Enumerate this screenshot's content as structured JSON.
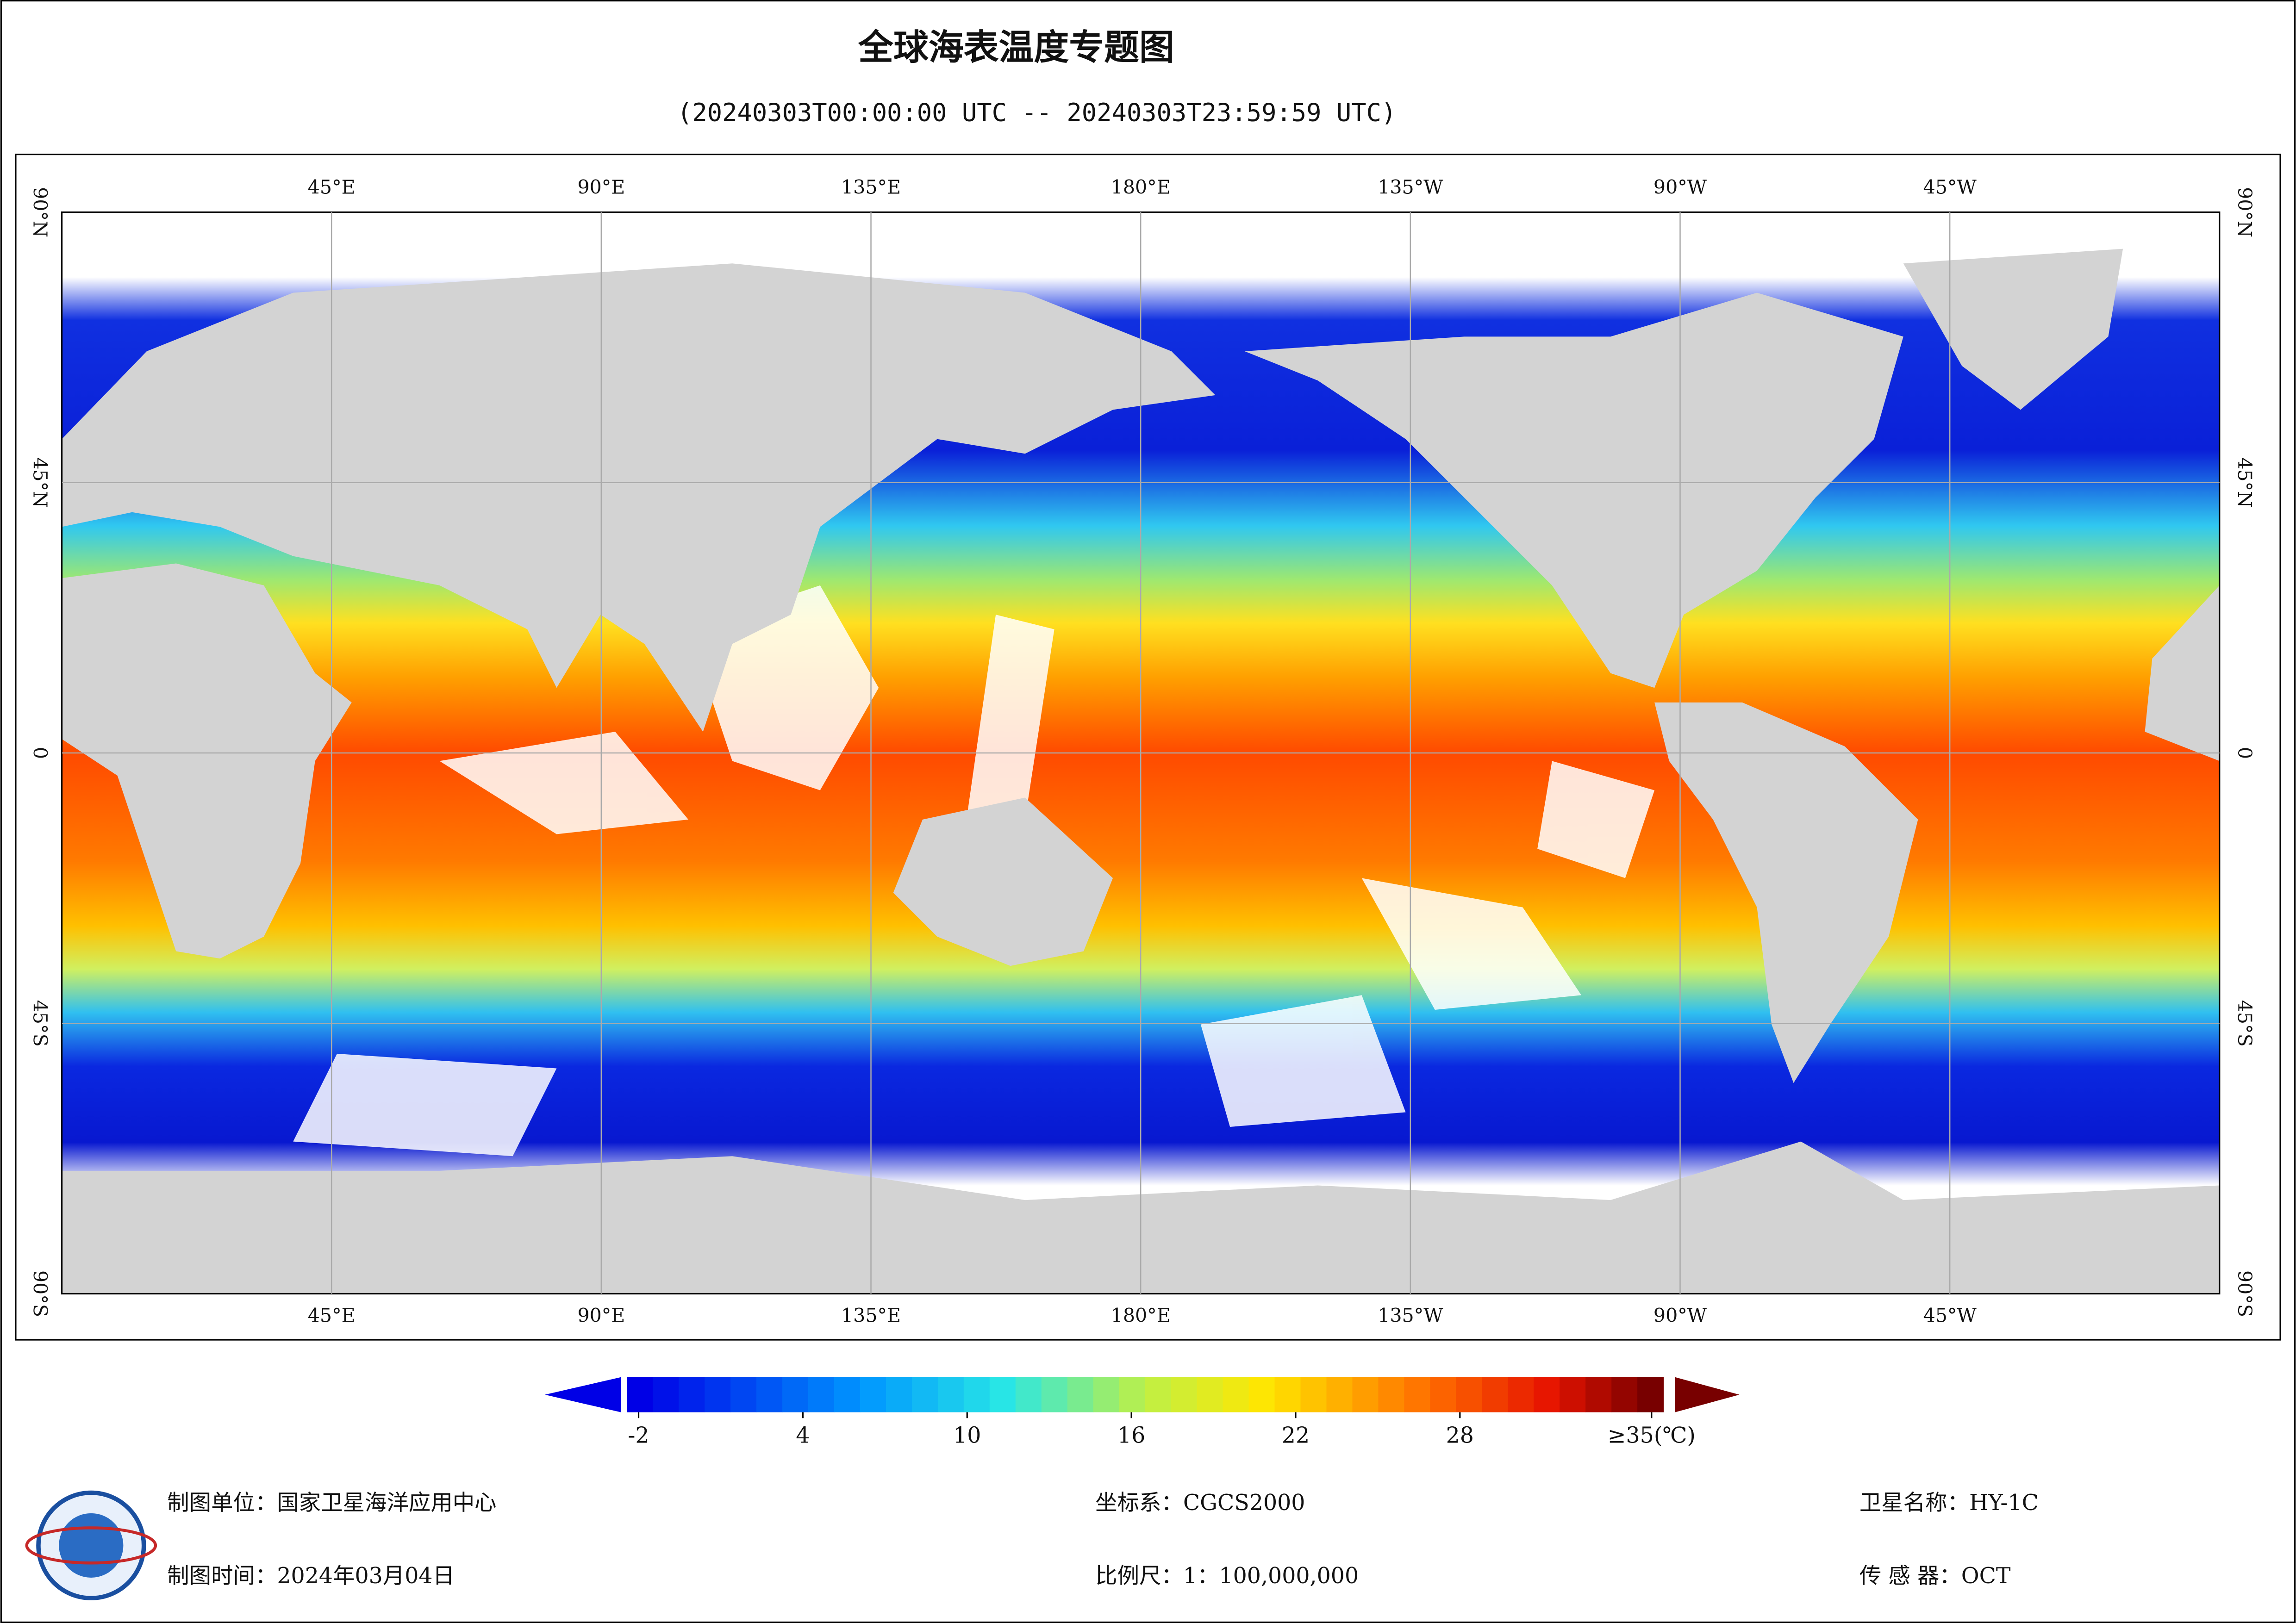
{
  "header": {
    "title": "全球海表温度专题图",
    "subtitle": "(20240303T00:00:00 UTC -- 20240303T23:59:59 UTC)"
  },
  "map": {
    "lon_labels": [
      "45°E",
      "90°E",
      "135°E",
      "180°E",
      "135°W",
      "90°W",
      "45°W"
    ],
    "lat_labels": [
      "90°N",
      "45°N",
      "0",
      "45°S",
      "90°S"
    ]
  },
  "colorbar": {
    "lim": [
      -2,
      35
    ],
    "ticks": [
      -2,
      4,
      10,
      16,
      22,
      28,
      {
        "value": 35,
        "label": "≥35(℃)"
      }
    ]
  },
  "footer": {
    "unit": "制图单位：国家卫星海洋应用中心",
    "time": "制图时间：2024年03月04日",
    "crs": "坐标系：CGCS2000",
    "scale": "比例尺：1：100,000,000",
    "satellite": "卫星名称：HY-1C",
    "sensor": "传 感 器：OCT"
  }
}
